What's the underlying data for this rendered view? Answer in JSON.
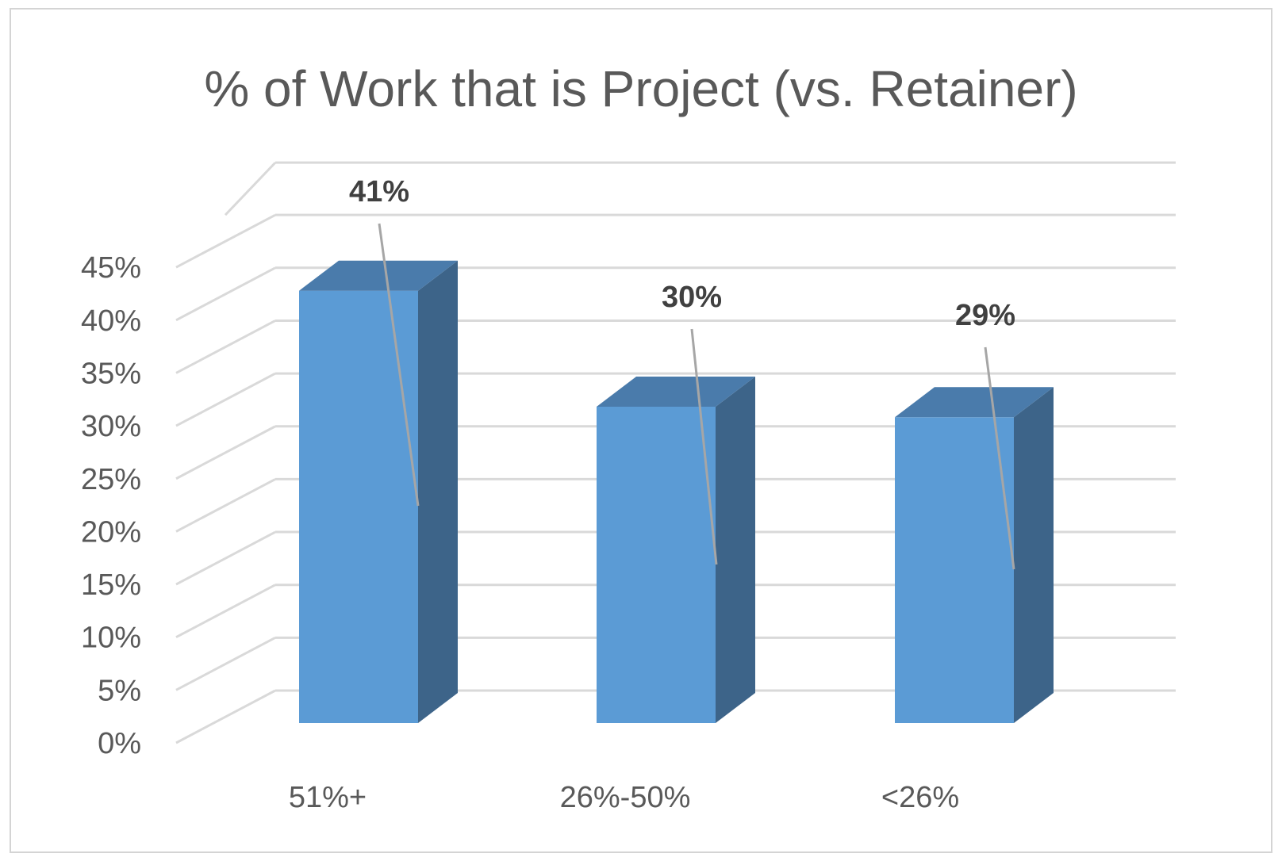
{
  "chart_data": {
    "type": "bar",
    "style": "3d-column",
    "title": "% of Work that is Project (vs. Retainer)",
    "xlabel": "",
    "ylabel": "",
    "categories": [
      "51%+",
      "26%-50%",
      "<26%"
    ],
    "values": [
      41,
      30,
      29
    ],
    "data_labels": [
      "41%",
      "30%",
      "29%"
    ],
    "ylim": [
      0,
      45
    ],
    "y_ticks": [
      0,
      5,
      10,
      15,
      20,
      25,
      30,
      35,
      40,
      45
    ],
    "y_tick_labels": [
      "0%",
      "5%",
      "10%",
      "15%",
      "20%",
      "25%",
      "30%",
      "35%",
      "40%",
      "45%"
    ],
    "grid": true,
    "legend": "none",
    "colors": {
      "bar_front": "#5b9bd5",
      "bar_side": "#3d6489",
      "bar_top": "#4a7bab",
      "grid": "#d9d9d9",
      "leader_line": "#a6a6a6"
    }
  }
}
